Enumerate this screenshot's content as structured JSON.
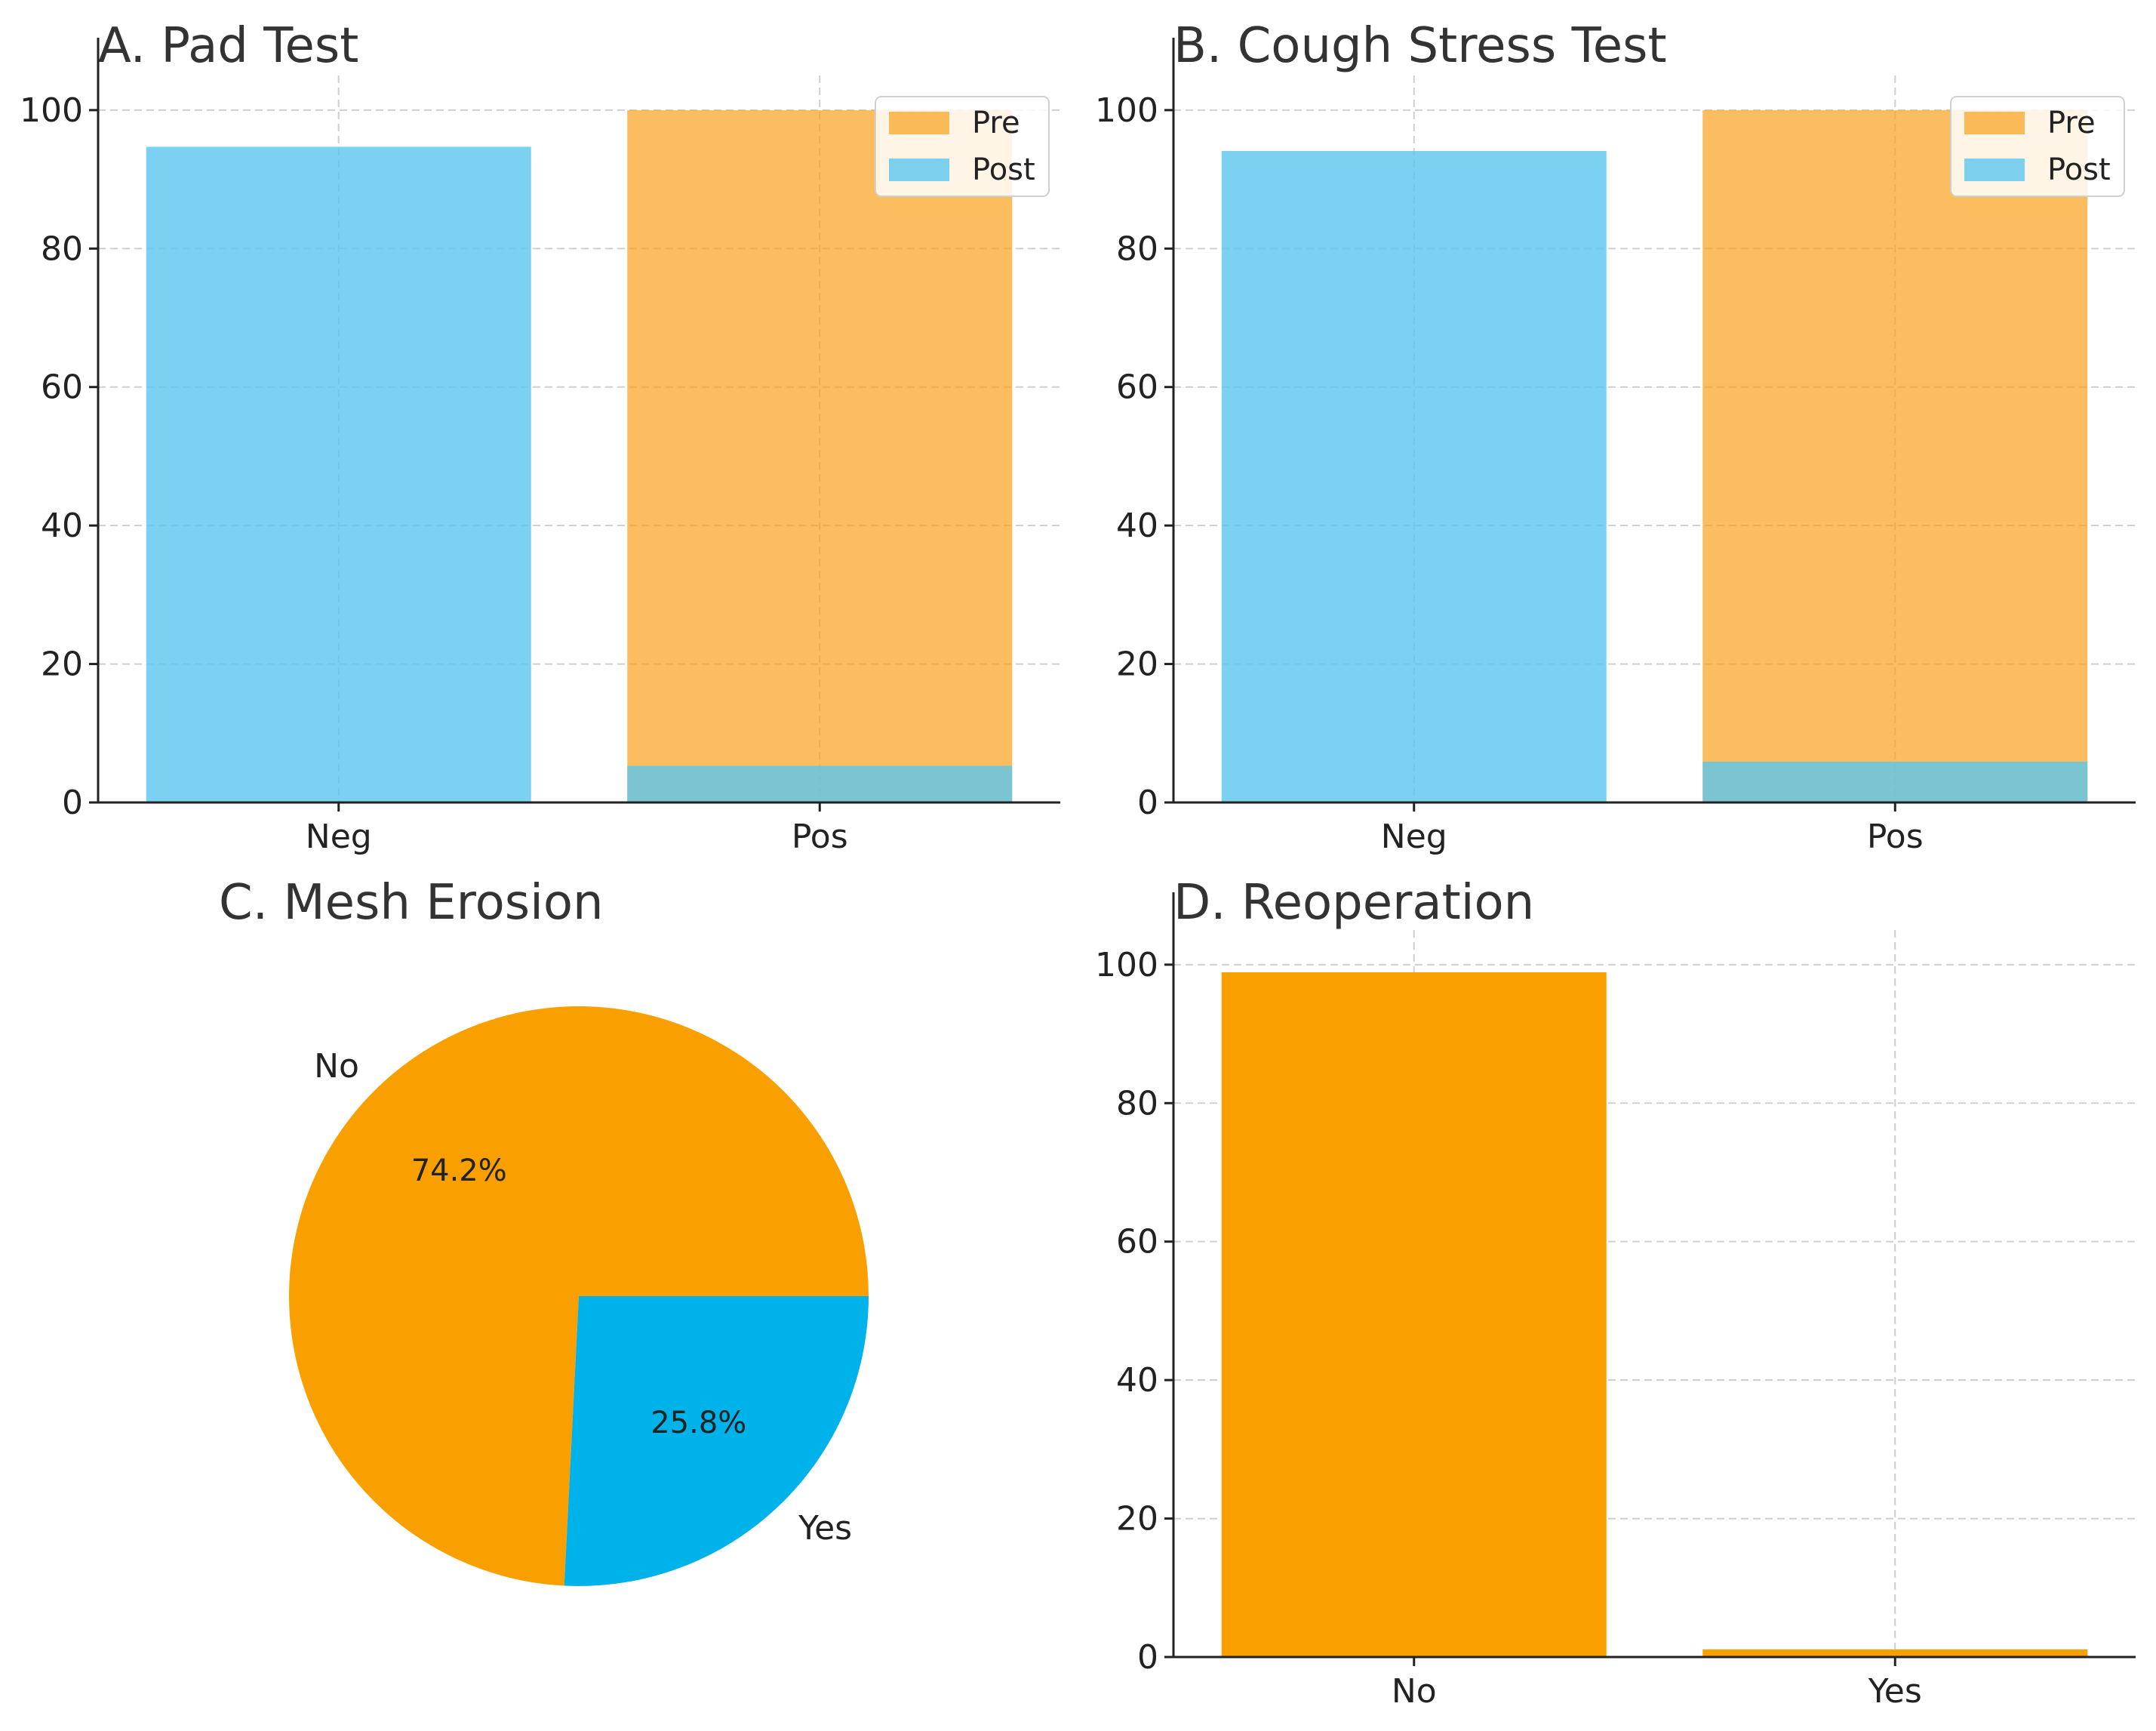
{
  "colors": {
    "pre": "#F9A11B",
    "post": "#5BC6EF",
    "overlap": "#7FBAB3",
    "bar": "#F9A000",
    "pie_no": "#F9A000",
    "pie_yes": "#00B2EA"
  },
  "chart_data": [
    {
      "id": "A",
      "type": "bar",
      "title": "A. Pad Test",
      "categories": [
        "Neg",
        "Pos"
      ],
      "series": [
        {
          "name": "Pre",
          "values": [
            0,
            100
          ]
        },
        {
          "name": "Post",
          "values": [
            94.7,
            5.3
          ]
        }
      ],
      "yticks": [
        0,
        20,
        40,
        60,
        80,
        100
      ],
      "ylim": [
        0,
        105
      ],
      "grid": true,
      "legend": "top-right"
    },
    {
      "id": "B",
      "type": "bar",
      "title": "B. Cough Stress Test",
      "categories": [
        "Neg",
        "Pos"
      ],
      "series": [
        {
          "name": "Pre",
          "values": [
            0,
            100
          ]
        },
        {
          "name": "Post",
          "values": [
            94.1,
            5.9
          ]
        }
      ],
      "yticks": [
        0,
        20,
        40,
        60,
        80,
        100
      ],
      "ylim": [
        0,
        105
      ],
      "grid": true,
      "legend": "top-right"
    },
    {
      "id": "C",
      "type": "pie",
      "title": "C. Mesh Erosion",
      "labels": [
        "No",
        "Yes"
      ],
      "values": [
        74.2,
        25.8
      ],
      "pct_labels": [
        "74.2%",
        "25.8%"
      ]
    },
    {
      "id": "D",
      "type": "bar",
      "title": "D. Reoperation",
      "categories": [
        "No",
        "Yes"
      ],
      "values": [
        98.9,
        1.1
      ],
      "yticks": [
        0,
        20,
        40,
        60,
        80,
        100
      ],
      "ylim": [
        0,
        105
      ],
      "grid": true
    }
  ]
}
